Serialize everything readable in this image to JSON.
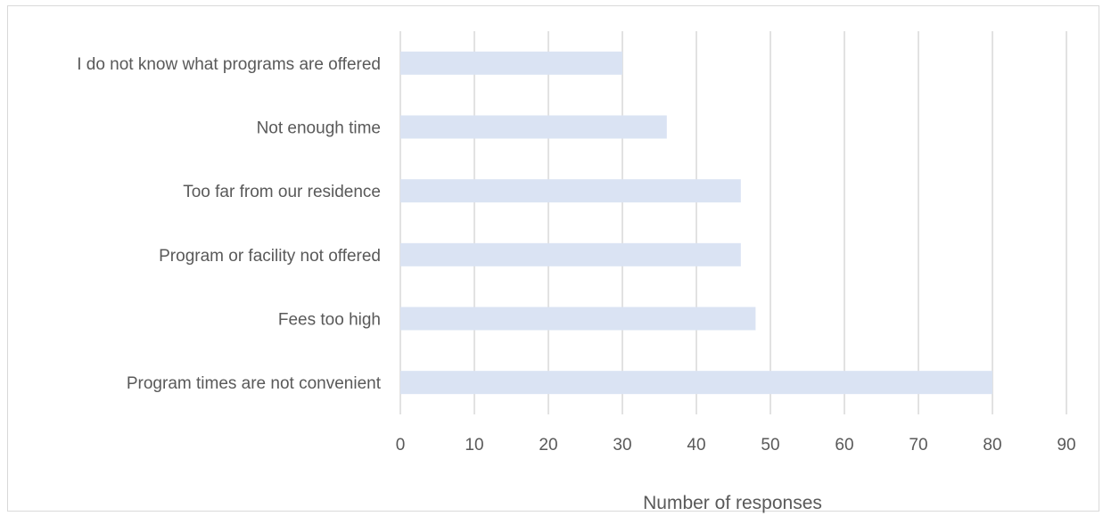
{
  "chart_data": {
    "type": "bar",
    "orientation": "horizontal",
    "categories": [
      "I do not know what programs are offered",
      "Not enough time",
      "Too far from our residence",
      "Program or facility not offered",
      "Fees too high",
      "Program times are not convenient"
    ],
    "values": [
      30,
      36,
      46,
      46,
      48,
      80
    ],
    "xlabel": "Number of responses",
    "ylabel": "",
    "xlim": [
      0,
      90
    ],
    "xticks": [
      "0",
      "10",
      "20",
      "30",
      "40",
      "50",
      "60",
      "70",
      "80",
      "90"
    ],
    "grid": "vertical",
    "legend": "none",
    "bar_color": "#dae3f3",
    "grid_color": "#d9d9d9",
    "text_color": "#595959"
  }
}
